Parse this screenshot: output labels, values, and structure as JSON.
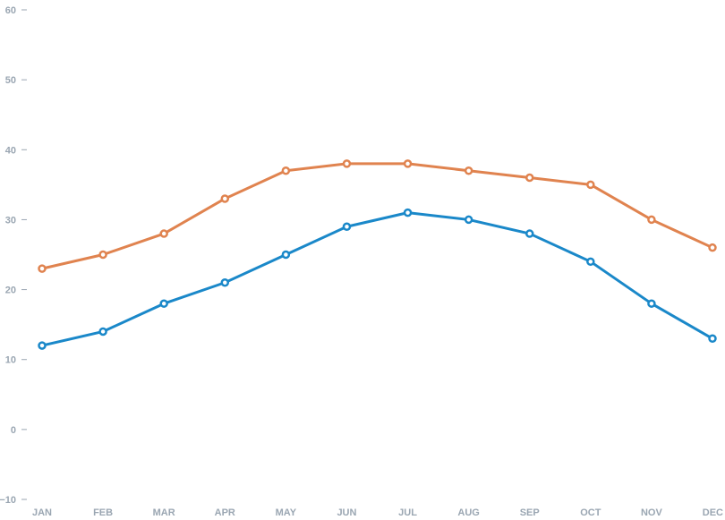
{
  "chart_data": {
    "type": "line",
    "categories": [
      "JAN",
      "FEB",
      "MAR",
      "APR",
      "MAY",
      "JUN",
      "JUL",
      "AUG",
      "SEP",
      "OCT",
      "NOV",
      "DEC"
    ],
    "series": [
      {
        "color": "#e0834f",
        "values": [
          23,
          25,
          28,
          33,
          37,
          38,
          38,
          37,
          36,
          35,
          30,
          26
        ]
      },
      {
        "color": "#1a88c9",
        "values": [
          12,
          14,
          18,
          21,
          25,
          29,
          31,
          30,
          28,
          24,
          18,
          13
        ]
      }
    ],
    "y_ticks": [
      "60",
      "50",
      "40",
      "30",
      "20",
      "10",
      "0",
      "−10"
    ],
    "ylim": [
      -10,
      60
    ],
    "grid": false,
    "legend": "none"
  }
}
